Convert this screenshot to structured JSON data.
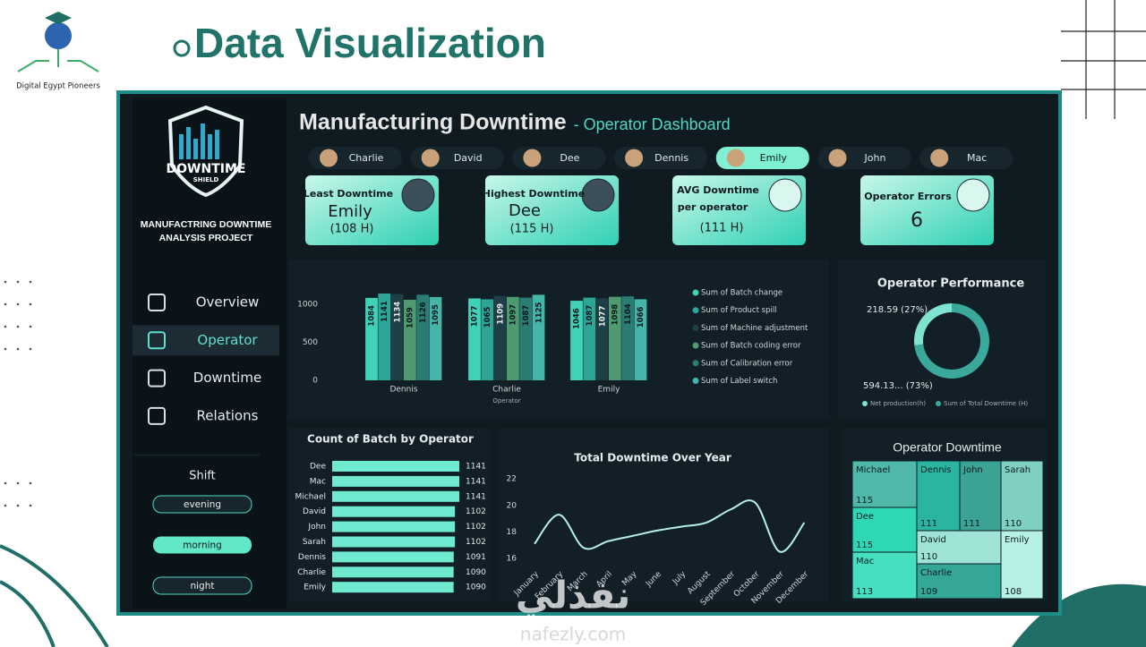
{
  "slide": {
    "logo_text": "Digital Egypt Pioneers",
    "title": "Data Visualization",
    "watermark": "نفذلي",
    "watermark_url": "nafezly.com"
  },
  "dashboard": {
    "logo_title": "DOWNTIME",
    "logo_subtitle": "SHIELD",
    "project": [
      "MANUFACTRING DOWNTIME",
      "ANALYSIS PROJECT"
    ],
    "title": "Manufacturing Downtime",
    "subtitle": "- Operator Dashboard",
    "operators": [
      "Charlie",
      "David",
      "Dee",
      "Dennis",
      "Emily",
      "John",
      "Mac"
    ],
    "selected_operator": 4,
    "nav": [
      "Overview",
      "Operator",
      "Downtime",
      "Relations"
    ],
    "active_nav": 1,
    "shift_title": "Shift",
    "shifts": [
      "evening",
      "morning",
      "night"
    ],
    "selected_shift": 1,
    "cards": [
      {
        "label": [
          "Least Downtime"
        ],
        "value": "Emily",
        "detail": "(108 H)"
      },
      {
        "label": [
          "Highest Downtime"
        ],
        "value": "Dee",
        "detail": "(115 H)"
      },
      {
        "label": [
          "AVG Downtime",
          "per operator"
        ],
        "detail": "(111 H)"
      },
      {
        "label": [
          "Operator Errors"
        ],
        "value": "6"
      }
    ]
  },
  "chart_data": [
    {
      "type": "bar",
      "xlabel": "Operator",
      "categories": [
        "Dennis",
        "Charlie",
        "Emily"
      ],
      "series": [
        {
          "name": "Sum of Batch change",
          "color": "#3fd2b6",
          "values": [
            1084,
            1077,
            1046
          ]
        },
        {
          "name": "Sum of Product spill",
          "color": "#2ea597",
          "values": [
            1141,
            1065,
            1087
          ]
        },
        {
          "name": "Sum of Machine adjustment",
          "color": "#1f3f46",
          "values": [
            1134,
            1109,
            1077
          ]
        },
        {
          "name": "Sum of Batch coding error",
          "color": "#4f9a70",
          "values": [
            1059,
            1097,
            1098
          ]
        },
        {
          "name": "Sum of Calibration error",
          "color": "#2b7c73",
          "values": [
            1126,
            1087,
            1104
          ]
        },
        {
          "name": "Sum of Label switch",
          "color": "#45b5a9",
          "values": [
            1095,
            1125,
            1066
          ]
        }
      ],
      "ylim": [
        0,
        1200
      ],
      "yticks": [
        0,
        500,
        1000
      ]
    },
    {
      "type": "donut",
      "title": "Operator Performance",
      "categories": [
        "Net production(h)",
        "Sum of Total Downtime (H)"
      ],
      "values": [
        218.59,
        594.13
      ],
      "value_labels": [
        "218.59 (27%)",
        "594.13... (73%)"
      ],
      "colors": [
        "#7fe3d2",
        "#3aa99c"
      ]
    },
    {
      "type": "hbar",
      "title": "Count of Batch by Operator",
      "categories": [
        "Dee",
        "Mac",
        "Michael",
        "David",
        "John",
        "Sarah",
        "Dennis",
        "Charlie",
        "Emily"
      ],
      "values": [
        1141,
        1141,
        1141,
        1102,
        1102,
        1102,
        1091,
        1090,
        1090
      ],
      "color": "#6fe9d0"
    },
    {
      "type": "line",
      "title": "Total Downtime Over Year",
      "categories": [
        "January",
        "February",
        "March",
        "April",
        "May",
        "June",
        "July",
        "August",
        "September",
        "October",
        "November",
        "December"
      ],
      "values": [
        17.1,
        19.3,
        16.8,
        17.3,
        17.7,
        18.1,
        18.4,
        18.7,
        19.7,
        20.2,
        16.5,
        18.7
      ],
      "color": "#b8efe4",
      "ylim": [
        15.5,
        22.5
      ],
      "yticks": [
        16,
        18,
        20,
        22
      ]
    },
    {
      "type": "treemap",
      "title": "Operator Downtime",
      "categories": [
        "Michael",
        "Dee",
        "Mac",
        "Dennis",
        "John",
        "Sarah",
        "David",
        "Charlie",
        "Emily"
      ],
      "values": [
        115,
        115,
        113,
        111,
        111,
        110,
        110,
        109,
        108
      ],
      "colors": [
        "#4fb8a8",
        "#2fd8b4",
        "#46e0c0",
        "#29b5a0",
        "#3aa394",
        "#7fcfc3",
        "#9fe3d6",
        "#34a796",
        "#b7f0e4"
      ]
    }
  ]
}
